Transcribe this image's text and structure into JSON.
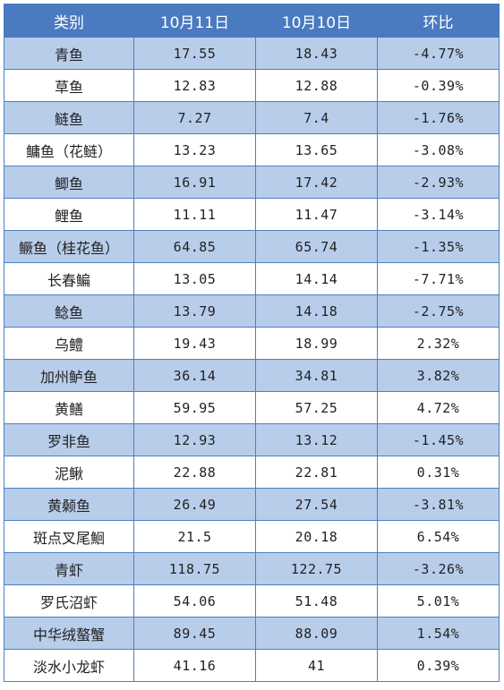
{
  "header": [
    "类别",
    "10月11日",
    "10月10日",
    "环比"
  ],
  "rows": [
    [
      "青鱼",
      "17.55",
      "18.43",
      "-4.77%"
    ],
    [
      "草鱼",
      "12.83",
      "12.88",
      "-0.39%"
    ],
    [
      "鲢鱼",
      "7.27",
      "7.4",
      "-1.76%"
    ],
    [
      "鳙鱼（花鲢）",
      "13.23",
      "13.65",
      "-3.08%"
    ],
    [
      "鲫鱼",
      "16.91",
      "17.42",
      "-2.93%"
    ],
    [
      "鲤鱼",
      "11.11",
      "11.47",
      "-3.14%"
    ],
    [
      "鳜鱼（桂花鱼）",
      "64.85",
      "65.74",
      "-1.35%"
    ],
    [
      "长春鳊",
      "13.05",
      "14.14",
      "-7.71%"
    ],
    [
      "鲶鱼",
      "13.79",
      "14.18",
      "-2.75%"
    ],
    [
      "乌鳢",
      "19.43",
      "18.99",
      "2.32%"
    ],
    [
      "加州鲈鱼",
      "36.14",
      "34.81",
      "3.82%"
    ],
    [
      "黄鳝",
      "59.95",
      "57.25",
      "4.72%"
    ],
    [
      "罗非鱼",
      "12.93",
      "13.12",
      "-1.45%"
    ],
    [
      "泥鳅",
      "22.88",
      "22.81",
      "0.31%"
    ],
    [
      "黄颡鱼",
      "26.49",
      "27.54",
      "-3.81%"
    ],
    [
      "斑点叉尾鮰",
      "21.5",
      "20.18",
      "6.54%"
    ],
    [
      "青虾",
      "118.75",
      "122.75",
      "-3.26%"
    ],
    [
      "罗氏沼虾",
      "54.06",
      "51.48",
      "5.01%"
    ],
    [
      "中华绒螯蟹",
      "89.45",
      "88.09",
      "1.54%"
    ],
    [
      "淡水小龙虾",
      "41.16",
      "41",
      "0.39%"
    ]
  ]
}
